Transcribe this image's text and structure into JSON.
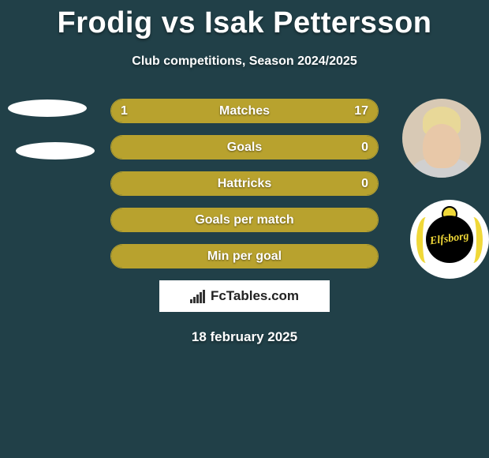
{
  "title": "Frodig vs Isak Pettersson",
  "subtitle": "Club competitions, Season 2024/2025",
  "colors": {
    "background": "#214048",
    "bar_fill": "#b8a22e",
    "bar_border": "#b8a22e",
    "text": "#ffffff"
  },
  "stats": [
    {
      "label": "Matches",
      "left_value": "1",
      "right_value": "17",
      "left_pct": 5.6,
      "right_pct": 94.4,
      "show_values": true
    },
    {
      "label": "Goals",
      "left_value": "",
      "right_value": "0",
      "left_pct": 0,
      "right_pct": 0,
      "show_values": true,
      "full_fill": true
    },
    {
      "label": "Hattricks",
      "left_value": "",
      "right_value": "0",
      "left_pct": 0,
      "right_pct": 0,
      "show_values": true,
      "full_fill": true
    },
    {
      "label": "Goals per match",
      "left_value": "",
      "right_value": "",
      "left_pct": 0,
      "right_pct": 0,
      "show_values": false,
      "full_fill": true
    },
    {
      "label": "Min per goal",
      "left_value": "",
      "right_value": "",
      "left_pct": 0,
      "right_pct": 0,
      "show_values": false,
      "full_fill": true
    }
  ],
  "footer_brand": "FcTables.com",
  "footer_date": "18 february 2025",
  "badge_text": "Elfsborg"
}
